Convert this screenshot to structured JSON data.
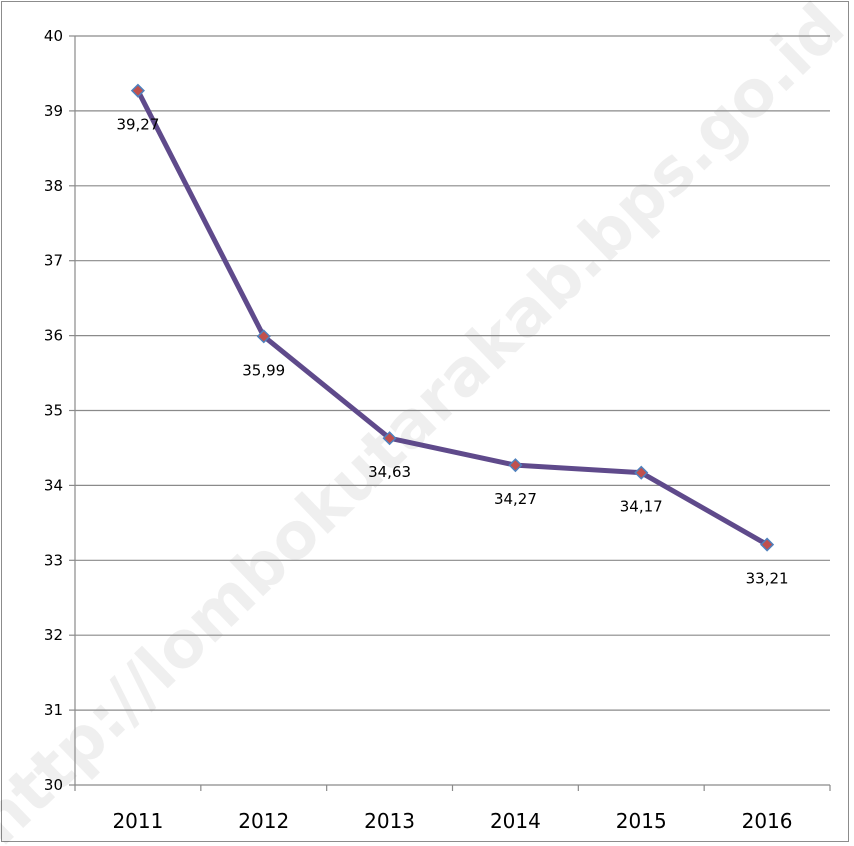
{
  "watermark": "http://lombokutarakab.bps.go.id",
  "chart_data": {
    "type": "line",
    "title": "",
    "xlabel": "",
    "ylabel": "",
    "categories": [
      "2011",
      "2012",
      "2013",
      "2014",
      "2015",
      "2016"
    ],
    "series": [
      {
        "values": [
          39.27,
          35.99,
          34.63,
          34.27,
          34.17,
          33.21
        ],
        "data_labels": [
          "39,27",
          "35,99",
          "34,63",
          "34,27",
          "34,17",
          "33,21"
        ],
        "line_color": "#5f4a8b",
        "marker_fill": "#c0504d",
        "marker_edge": "#4f81bd"
      }
    ],
    "yticks": [
      "30",
      "31",
      "32",
      "33",
      "34",
      "35",
      "36",
      "37",
      "38",
      "39",
      "40"
    ],
    "ylim": [
      30,
      40
    ],
    "grid": true,
    "legend": "none"
  }
}
